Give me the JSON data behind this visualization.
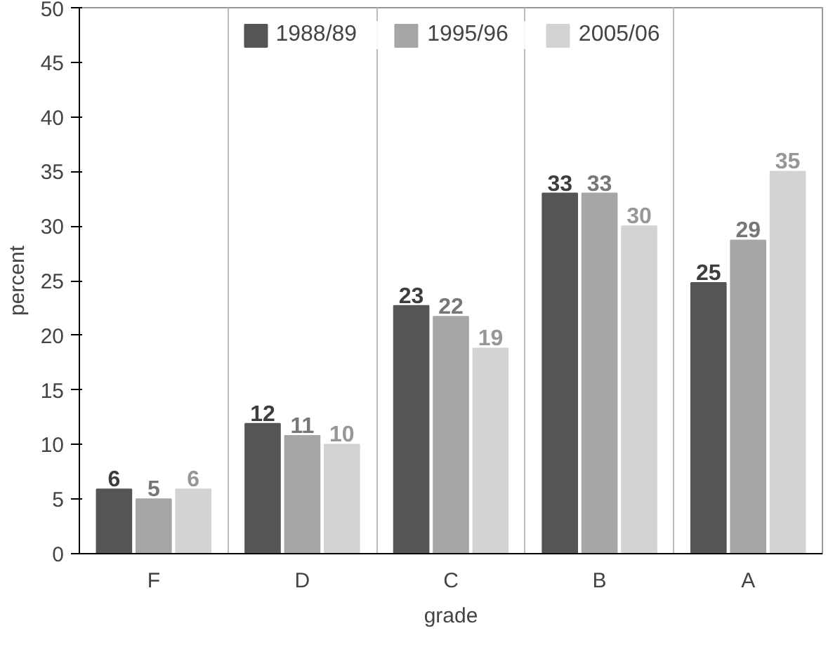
{
  "chart_data": {
    "type": "bar",
    "xlabel": "grade",
    "ylabel": "percent",
    "categories": [
      "F",
      "D",
      "C",
      "B",
      "A"
    ],
    "series": [
      {
        "name": "1988/89",
        "color": "#555555",
        "values": [
          5.9,
          11.9,
          22.7,
          33.0,
          24.8
        ],
        "value_labels": [
          "6",
          "12",
          "23",
          "33",
          "25"
        ]
      },
      {
        "name": "1995/96",
        "color": "#a6a6a6",
        "values": [
          5.0,
          10.8,
          21.7,
          33.0,
          28.7
        ],
        "value_labels": [
          "5",
          "11",
          "22",
          "33",
          "29"
        ]
      },
      {
        "name": "2005/06",
        "color": "#d3d3d3",
        "values": [
          5.9,
          10.0,
          18.8,
          30.0,
          35.0
        ],
        "value_labels": [
          "6",
          "10",
          "19",
          "30",
          "35"
        ]
      }
    ],
    "ylim": [
      0,
      50
    ],
    "yticks": [
      0,
      5,
      10,
      15,
      20,
      25,
      30,
      35,
      40,
      45,
      50
    ],
    "grid": "x",
    "legend": "top"
  }
}
